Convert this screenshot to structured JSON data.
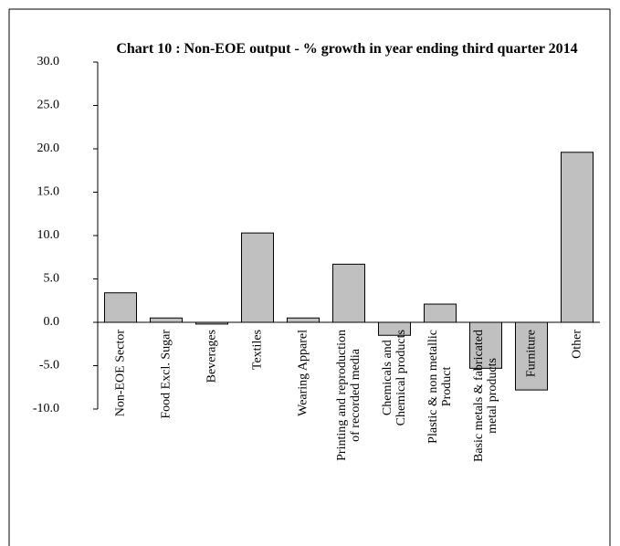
{
  "chart_data": {
    "type": "bar",
    "title": "Chart 10 : Non-EOE output - % growth in year ending third quarter 2014",
    "categories": [
      "Non-EOE Sector",
      "Food Excl. Sugar",
      "Beverages",
      "Textiles",
      "Wearing Apparel",
      "Printing and reproduction\nof recorded media",
      "Chemicals and\nChemical products",
      "Plastic & non metallic\nProduct",
      "Basic metals & fabricated\nmetal products",
      "Furniture",
      "Other"
    ],
    "values": [
      3.4,
      0.5,
      -0.2,
      10.3,
      0.5,
      6.7,
      -1.5,
      2.1,
      -5.3,
      -7.8,
      19.6
    ],
    "color": "#c0c0c0",
    "ylim": [
      -10,
      30
    ],
    "yticks": [
      {
        "value": -10,
        "label": "-10.0"
      },
      {
        "value": -5,
        "label": "-5.0"
      },
      {
        "value": 0,
        "label": "0.0"
      },
      {
        "value": 5,
        "label": "5.0"
      },
      {
        "value": 10,
        "label": "10.0"
      },
      {
        "value": 15,
        "label": "15.0"
      },
      {
        "value": 20,
        "label": "20.0"
      },
      {
        "value": 25,
        "label": "25.0"
      },
      {
        "value": 30,
        "label": "30.0"
      }
    ],
    "grid": false
  }
}
